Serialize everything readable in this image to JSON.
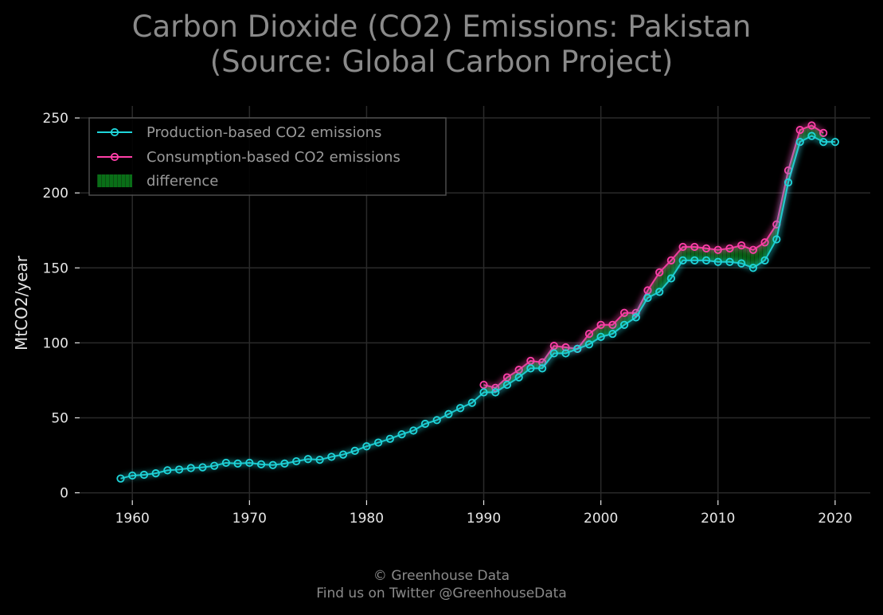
{
  "title_line1": "Carbon Dioxide (CO2) Emissions: Pakistan",
  "title_line2": "(Source: Global Carbon Project)",
  "footer_line1": "© Greenhouse Data",
  "footer_line2": "Find us on Twitter @GreenhouseData",
  "colors": {
    "background": "#000000",
    "production": "#1fd6db",
    "consumption": "#ff3fa8",
    "difference": "#0a7a1a",
    "grid": "#2a2a2a",
    "text": "#e6e6e6",
    "title": "#8a8a8a"
  },
  "chart_data": {
    "type": "line",
    "title": "Carbon Dioxide (CO2) Emissions: Pakistan (Source: Global Carbon Project)",
    "xlabel": "",
    "ylabel": "MtCO2/year",
    "xlim": [
      1955.5,
      2023
    ],
    "ylim": [
      -5,
      258
    ],
    "xticks": [
      1960,
      1970,
      1980,
      1990,
      2000,
      2010,
      2020
    ],
    "yticks": [
      0,
      50,
      100,
      150,
      200,
      250
    ],
    "grid": true,
    "legend_position": "top-left",
    "legend": [
      "Production-based CO2 emissions",
      "Consumption-based CO2 emissions",
      "difference"
    ],
    "series": [
      {
        "name": "Production-based CO2 emissions",
        "x": [
          1959,
          1960,
          1961,
          1962,
          1963,
          1964,
          1965,
          1966,
          1967,
          1968,
          1969,
          1970,
          1971,
          1972,
          1973,
          1974,
          1975,
          1976,
          1977,
          1978,
          1979,
          1980,
          1981,
          1982,
          1983,
          1984,
          1985,
          1986,
          1987,
          1988,
          1989,
          1990,
          1991,
          1992,
          1993,
          1994,
          1995,
          1996,
          1997,
          1998,
          1999,
          2000,
          2001,
          2002,
          2003,
          2004,
          2005,
          2006,
          2007,
          2008,
          2009,
          2010,
          2011,
          2012,
          2013,
          2014,
          2015,
          2016,
          2017,
          2018,
          2019,
          2020
        ],
        "values": [
          9.5,
          11.5,
          12,
          13,
          15,
          15.5,
          16.5,
          17,
          18,
          20,
          19.5,
          20,
          19,
          18.5,
          19.5,
          21,
          22.5,
          22,
          24,
          25.5,
          28,
          31,
          33.5,
          36,
          39,
          41.5,
          46,
          48.5,
          52.5,
          56.5,
          60,
          67,
          67,
          72,
          77,
          83,
          83,
          93,
          93,
          96,
          99,
          104,
          106,
          112,
          117,
          130,
          134,
          143,
          155,
          155,
          155,
          154,
          154,
          153,
          150,
          155,
          169,
          207,
          234,
          238,
          234,
          234
        ]
      },
      {
        "name": "Consumption-based CO2 emissions",
        "x": [
          1990,
          1991,
          1992,
          1993,
          1994,
          1995,
          1996,
          1997,
          1998,
          1999,
          2000,
          2001,
          2002,
          2003,
          2004,
          2005,
          2006,
          2007,
          2008,
          2009,
          2010,
          2011,
          2012,
          2013,
          2014,
          2015,
          2016,
          2017,
          2018,
          2019
        ],
        "values": [
          72,
          70,
          77,
          82,
          88,
          87,
          98,
          97,
          96,
          106,
          112,
          112,
          120,
          120,
          135,
          147,
          155,
          164,
          164,
          163,
          162,
          163,
          165,
          162,
          167,
          179,
          215,
          242,
          245,
          240
        ]
      }
    ]
  }
}
